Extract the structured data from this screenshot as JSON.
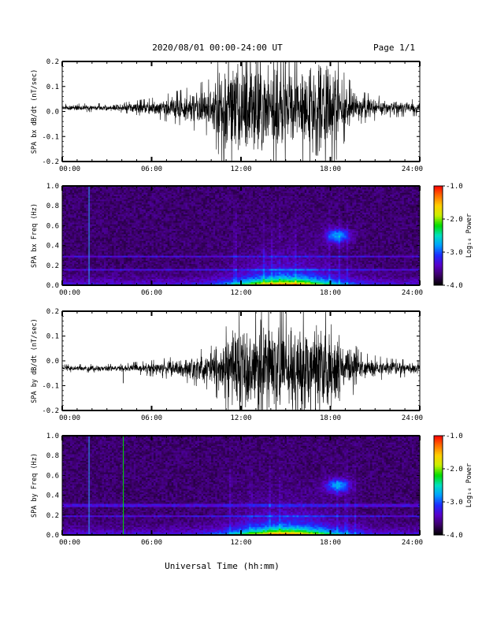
{
  "header": {
    "title": "2020/08/01  00:00-24:00 UT",
    "page": "Page 1/1"
  },
  "footer": {
    "xlabel": "Universal Time (hh:mm)"
  },
  "colorbar": {
    "label": "Log₁₀ Power",
    "ticks": [
      "-1.0",
      "-2.0",
      "-3.0",
      "-4.0"
    ],
    "values": [
      -1.0,
      -2.0,
      -3.0,
      -4.0
    ],
    "range": [
      -4.0,
      -1.0
    ],
    "colormap": [
      "#000000",
      "#3b0066",
      "#5a00c8",
      "#1d2bff",
      "#00a0ff",
      "#00e0c0",
      "#00dc00",
      "#c8f000",
      "#ffd000",
      "#ff7000",
      "#ff0000"
    ]
  },
  "time_ticks": [
    "00:00",
    "06:00",
    "12:00",
    "18:00",
    "24:00"
  ],
  "chart_data": [
    {
      "type": "line",
      "ylabel": "SPA bx dB/dt (nT/sec)",
      "xlim": [
        0,
        24
      ],
      "ylim": [
        -0.2,
        0.2
      ],
      "yticks": [
        "0.2",
        "0.1",
        "0.0",
        "-0.1",
        "-0.2"
      ],
      "ytick_values": [
        0.2,
        0.1,
        0.0,
        -0.1,
        -0.2
      ],
      "baseline": 0.015,
      "activity": {
        "hours": [
          0,
          4,
          6,
          8,
          10,
          11,
          12,
          13,
          14,
          15,
          16,
          17,
          18,
          19,
          20,
          22,
          24
        ],
        "amplitude": [
          0.012,
          0.015,
          0.03,
          0.055,
          0.09,
          0.2,
          0.2,
          0.22,
          0.2,
          0.18,
          0.2,
          0.22,
          0.2,
          0.1,
          0.05,
          0.03,
          0.025
        ]
      }
    },
    {
      "type": "heatmap",
      "ylabel": "SPA bx Freq (Hz)",
      "xlim": [
        0,
        24
      ],
      "ylim": [
        0.0,
        1.0
      ],
      "yticks": [
        "1.0",
        "0.8",
        "0.6",
        "0.4",
        "0.2",
        "0.0"
      ],
      "ytick_values": [
        1.0,
        0.8,
        0.6,
        0.4,
        0.2,
        0.0
      ],
      "zlim": [
        -4.0,
        -1.0
      ],
      "features": {
        "vertical_lines_hours": [
          1.8
        ],
        "horizontal_bands_hz": [
          0.29,
          0.16
        ],
        "blob": {
          "hour": 18.5,
          "freq_hz": 0.5
        }
      }
    },
    {
      "type": "line",
      "ylabel": "SPA by dB/dt (nT/sec)",
      "xlim": [
        0,
        24
      ],
      "ylim": [
        -0.2,
        0.2
      ],
      "yticks": [
        "0.2",
        "0.1",
        "0.0",
        "-0.1",
        "-0.2"
      ],
      "ytick_values": [
        0.2,
        0.1,
        0.0,
        -0.1,
        -0.2
      ],
      "baseline": -0.03,
      "activity": {
        "hours": [
          0,
          4,
          6,
          8,
          10,
          11,
          12,
          13,
          14,
          15,
          16,
          17,
          18,
          19,
          20,
          22,
          24
        ],
        "amplitude": [
          0.012,
          0.014,
          0.025,
          0.04,
          0.07,
          0.13,
          0.2,
          0.22,
          0.2,
          0.18,
          0.2,
          0.22,
          0.2,
          0.12,
          0.05,
          0.03,
          0.025
        ]
      },
      "spikes": [
        {
          "hour": 4.1,
          "value": -0.09
        }
      ]
    },
    {
      "type": "heatmap",
      "ylabel": "SPA by Freq (Hz)",
      "xlim": [
        0,
        24
      ],
      "ylim": [
        0.0,
        1.0
      ],
      "yticks": [
        "1.0",
        "0.8",
        "0.6",
        "0.4",
        "0.2",
        "0.0"
      ],
      "ytick_values": [
        1.0,
        0.8,
        0.6,
        0.4,
        0.2,
        0.0
      ],
      "zlim": [
        -4.0,
        -1.0
      ],
      "features": {
        "vertical_lines_hours": [
          1.8,
          4.1
        ],
        "horizontal_bands_hz": [
          0.3,
          0.19
        ],
        "blob": {
          "hour": 18.5,
          "freq_hz": 0.5
        }
      }
    }
  ]
}
